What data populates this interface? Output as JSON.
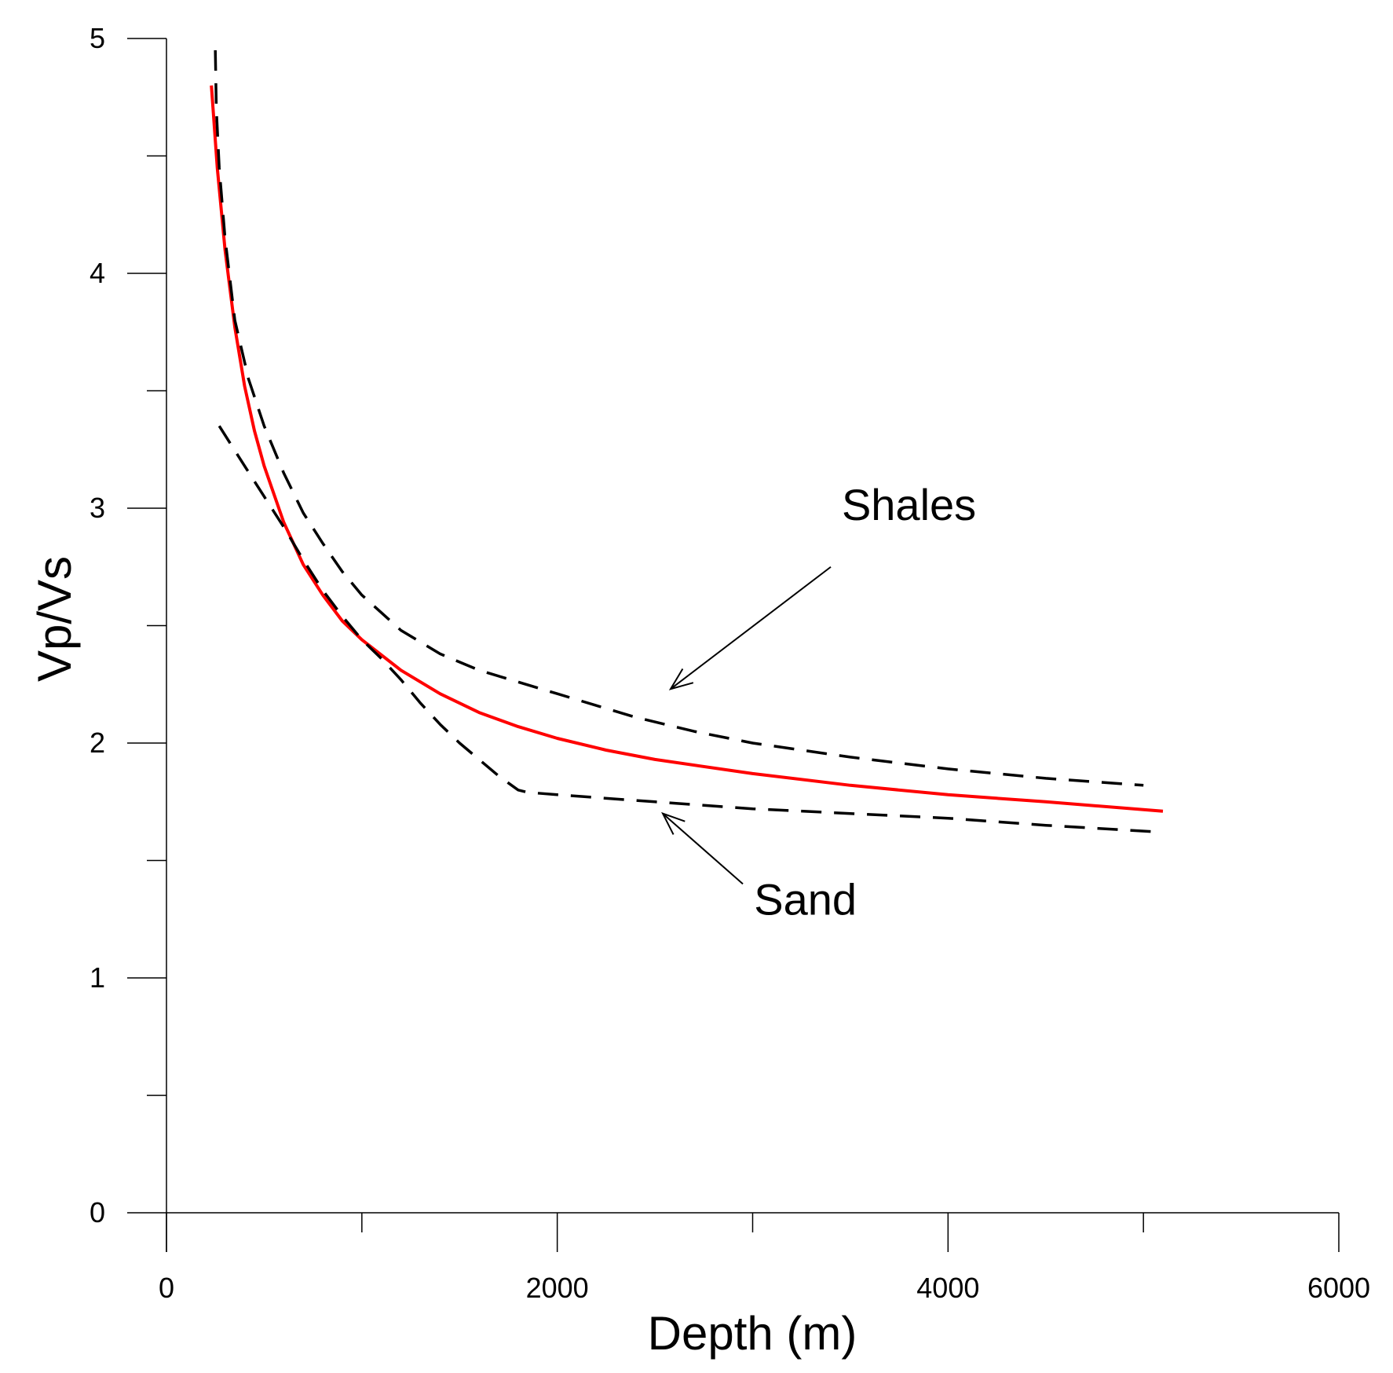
{
  "chart_data": {
    "type": "line",
    "xlabel": "Depth (m)",
    "ylabel": "Vp/Vs",
    "xlim": [
      0,
      6000
    ],
    "ylim": [
      0,
      5
    ],
    "x_major_ticks": [
      0,
      2000,
      4000,
      6000
    ],
    "x_tick_labels": [
      "0",
      "2000",
      "4000",
      "6000"
    ],
    "x_minor_ticks": [
      1000,
      3000,
      5000
    ],
    "y_major_ticks": [
      0,
      1,
      2,
      3,
      4,
      5
    ],
    "y_tick_labels": [
      "0",
      "1",
      "2",
      "3",
      "4",
      "5"
    ],
    "y_minor_ticks": [
      0.5,
      1.5,
      2.5,
      3.5,
      4.5
    ],
    "grid": false,
    "series": [
      {
        "style": "solid",
        "color": "#ff0000",
        "x": [
          230,
          260,
          300,
          350,
          400,
          450,
          500,
          600,
          700,
          800,
          900,
          1000,
          1200,
          1400,
          1600,
          1800,
          2000,
          2250,
          2500,
          3000,
          3500,
          4000,
          4500,
          5100
        ],
        "y": [
          4.8,
          4.45,
          4.1,
          3.77,
          3.52,
          3.33,
          3.18,
          2.94,
          2.76,
          2.63,
          2.52,
          2.44,
          2.31,
          2.21,
          2.13,
          2.07,
          2.02,
          1.97,
          1.93,
          1.87,
          1.82,
          1.78,
          1.75,
          1.71
        ]
      },
      {
        "style": "dashed",
        "color": "#000000",
        "x": [
          250,
          255,
          270,
          300,
          350,
          420,
          500,
          600,
          700,
          800,
          900,
          1000,
          1200,
          1400,
          1600,
          1800,
          2000,
          2200,
          2400,
          2700,
          3000,
          3500,
          4000,
          4500,
          5000
        ],
        "y": [
          4.95,
          4.7,
          4.45,
          4.15,
          3.8,
          3.55,
          3.35,
          3.15,
          2.98,
          2.85,
          2.73,
          2.63,
          2.48,
          2.38,
          2.31,
          2.26,
          2.21,
          2.16,
          2.11,
          2.05,
          2.0,
          1.94,
          1.89,
          1.85,
          1.82
        ]
      },
      {
        "style": "dashed",
        "color": "#000000",
        "x": [
          270,
          400,
          500,
          600,
          700,
          800,
          900,
          1000,
          1100,
          1200,
          1300,
          1400,
          1500,
          1600,
          1700,
          1800,
          1850,
          2000,
          2500,
          3000,
          3500,
          4000,
          4500,
          5100
        ],
        "y": [
          3.35,
          3.18,
          3.05,
          2.92,
          2.78,
          2.65,
          2.54,
          2.44,
          2.36,
          2.27,
          2.17,
          2.08,
          2.0,
          1.93,
          1.86,
          1.8,
          1.79,
          1.78,
          1.75,
          1.72,
          1.7,
          1.68,
          1.65,
          1.62
        ]
      }
    ],
    "annotations": [
      {
        "text": "Shales",
        "text_at": [
          3800,
          2.95
        ],
        "arrow_from": [
          3400,
          2.75
        ],
        "arrow_to": [
          2580,
          2.23
        ]
      },
      {
        "text": "Sand",
        "text_at": [
          3270,
          1.27
        ],
        "arrow_from": [
          2950,
          1.4
        ],
        "arrow_to": [
          2540,
          1.7
        ]
      }
    ]
  }
}
